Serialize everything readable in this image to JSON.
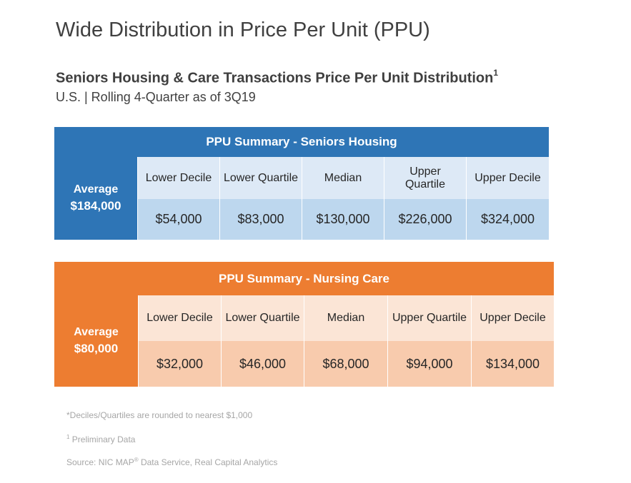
{
  "title": "Wide Distribution in Price Per Unit (PPU)",
  "subtitle": "Seniors Housing & Care Transactions Price Per Unit Distribution",
  "subtitle_sup": "1",
  "subsubtitle": "U.S. | Rolling 4-Quarter as of 3Q19",
  "colors": {
    "blue": "#2e75b6",
    "orange": "#ed7d31"
  },
  "seniors_housing": {
    "header": "PPU Summary - Seniors Housing",
    "avg_label": "Average",
    "avg_value": "$184,000",
    "columns": [
      "Lower Decile",
      "Lower Quartile",
      "Median",
      "Upper Quartile",
      "Upper Decile"
    ],
    "values": [
      "$54,000",
      "$83,000",
      "$130,000",
      "$226,000",
      "$324,000"
    ]
  },
  "nursing_care": {
    "header": "PPU Summary - Nursing Care",
    "avg_label": "Average",
    "avg_value": "$80,000",
    "columns": [
      "Lower Decile",
      "Lower Quartile",
      "Median",
      "Upper Quartile",
      "Upper Decile"
    ],
    "values": [
      "$32,000",
      "$46,000",
      "$68,000",
      "$94,000",
      "$134,000"
    ]
  },
  "footnotes": {
    "rounding": "*Deciles/Quartiles are rounded to nearest $1,000",
    "prelim_sup": "1",
    "prelim": " Preliminary Data",
    "source_a": "Source: NIC MAP",
    "source_reg": "®",
    "source_b": " Data Service, Real Capital Analytics"
  }
}
